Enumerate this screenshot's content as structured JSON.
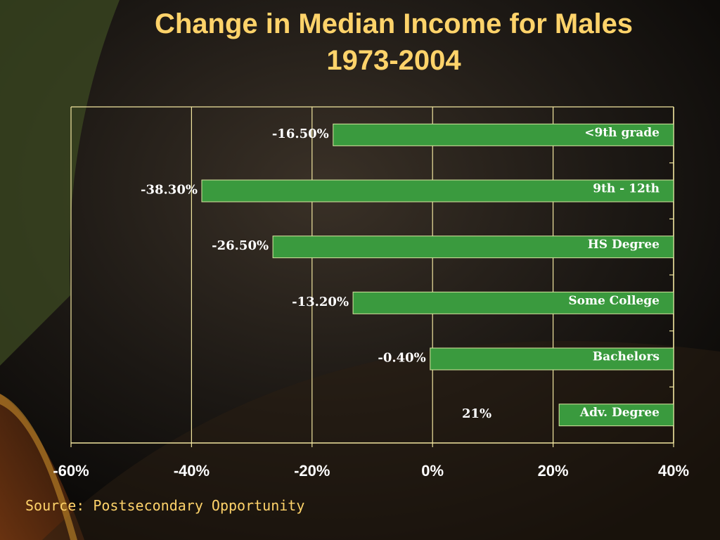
{
  "title_line1": "Change in Median Income for Males",
  "title_line2": "1973-2004",
  "source": "Source: Postsecondary Opportunity",
  "colors": {
    "bar": "#3a9a3e",
    "bar_edge": "#d8e6a0",
    "axis": "#f2e6a0",
    "title": "#ffd36a",
    "label": "#ffffff"
  },
  "chart_data": {
    "type": "bar",
    "orientation": "horizontal",
    "categories": [
      "<9th grade",
      "9th - 12th",
      "HS Degree",
      "Some College",
      "Bachelors",
      "Adv. Degree"
    ],
    "values": [
      -16.5,
      -38.3,
      -26.5,
      -13.2,
      -0.4,
      21
    ],
    "value_labels": [
      "-16.50%",
      "-38.30%",
      "-26.50%",
      "-13.20%",
      "-0.40%",
      "21%"
    ],
    "xlim": [
      -60,
      40
    ],
    "xticks": [
      -60,
      -40,
      -20,
      0,
      20,
      40
    ],
    "xtick_labels": [
      "-60%",
      "-40%",
      "-20%",
      "0%",
      "20%",
      "40%"
    ],
    "bars_anchor": 40,
    "grid": true
  }
}
